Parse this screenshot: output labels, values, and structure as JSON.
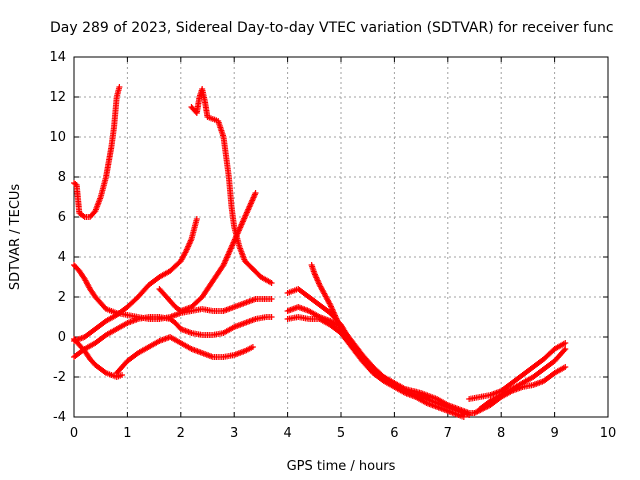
{
  "chart_data": {
    "type": "scatter",
    "title": "Day 289 of 2023, Sidereal Day-to-day VTEC variation (SDTVAR) for receiver func",
    "xlabel": "GPS time / hours",
    "ylabel": "SDTVAR / TECUs",
    "xlim": [
      0,
      10
    ],
    "ylim": [
      -4,
      14
    ],
    "xticks": [
      0,
      1,
      2,
      3,
      4,
      5,
      6,
      7,
      8,
      9,
      10
    ],
    "yticks": [
      -4,
      -2,
      0,
      2,
      4,
      6,
      8,
      10,
      12,
      14
    ],
    "grid": true,
    "marker": "+",
    "color": "#ff0000",
    "series": [
      {
        "name": "trace-1",
        "points": [
          [
            0.0,
            7.7
          ],
          [
            0.05,
            7.6
          ],
          [
            0.1,
            6.2
          ],
          [
            0.2,
            6.0
          ],
          [
            0.3,
            6.0
          ],
          [
            0.4,
            6.3
          ],
          [
            0.5,
            7.0
          ],
          [
            0.6,
            8.0
          ],
          [
            0.7,
            9.5
          ],
          [
            0.75,
            10.5
          ],
          [
            0.8,
            12.0
          ],
          [
            0.85,
            12.5
          ]
        ]
      },
      {
        "name": "trace-2",
        "points": [
          [
            2.2,
            11.5
          ],
          [
            2.3,
            11.2
          ],
          [
            2.35,
            12.0
          ],
          [
            2.4,
            12.4
          ],
          [
            2.45,
            11.8
          ],
          [
            2.5,
            11.0
          ],
          [
            2.6,
            10.9
          ],
          [
            2.7,
            10.8
          ],
          [
            2.8,
            10.0
          ],
          [
            2.85,
            9.0
          ],
          [
            2.9,
            8.0
          ],
          [
            2.95,
            6.5
          ],
          [
            3.0,
            5.5
          ],
          [
            3.1,
            4.5
          ],
          [
            3.2,
            3.8
          ],
          [
            3.35,
            3.4
          ],
          [
            3.5,
            3.0
          ],
          [
            3.7,
            2.7
          ]
        ]
      },
      {
        "name": "trace-3",
        "points": [
          [
            0.0,
            3.6
          ],
          [
            0.1,
            3.3
          ],
          [
            0.2,
            2.9
          ],
          [
            0.3,
            2.4
          ],
          [
            0.4,
            2.0
          ],
          [
            0.5,
            1.7
          ],
          [
            0.6,
            1.4
          ],
          [
            0.7,
            1.3
          ],
          [
            0.8,
            1.2
          ],
          [
            1.0,
            1.1
          ],
          [
            1.2,
            1.0
          ],
          [
            1.4,
            0.9
          ],
          [
            1.6,
            0.9
          ],
          [
            1.8,
            1.0
          ],
          [
            2.0,
            1.2
          ],
          [
            2.2,
            1.3
          ],
          [
            2.4,
            1.4
          ],
          [
            2.6,
            1.3
          ],
          [
            2.8,
            1.3
          ],
          [
            3.0,
            1.5
          ],
          [
            3.2,
            1.7
          ],
          [
            3.4,
            1.9
          ],
          [
            3.6,
            1.9
          ],
          [
            3.7,
            1.9
          ]
        ]
      },
      {
        "name": "trace-4",
        "points": [
          [
            0.0,
            -0.1
          ],
          [
            0.1,
            -0.4
          ],
          [
            0.2,
            -0.7
          ],
          [
            0.3,
            -1.1
          ],
          [
            0.4,
            -1.4
          ],
          [
            0.5,
            -1.6
          ],
          [
            0.6,
            -1.8
          ],
          [
            0.7,
            -1.9
          ],
          [
            0.8,
            -2.0
          ],
          [
            0.9,
            -1.9
          ]
        ]
      },
      {
        "name": "trace-5",
        "points": [
          [
            0.0,
            -1.0
          ],
          [
            0.2,
            -0.6
          ],
          [
            0.4,
            -0.3
          ],
          [
            0.6,
            0.1
          ],
          [
            0.8,
            0.4
          ],
          [
            1.0,
            0.7
          ],
          [
            1.2,
            0.9
          ],
          [
            1.4,
            1.0
          ],
          [
            1.6,
            1.0
          ],
          [
            1.8,
            0.9
          ],
          [
            1.9,
            0.7
          ],
          [
            2.0,
            0.4
          ],
          [
            2.2,
            0.2
          ],
          [
            2.4,
            0.1
          ],
          [
            2.6,
            0.1
          ],
          [
            2.8,
            0.2
          ],
          [
            3.0,
            0.5
          ],
          [
            3.2,
            0.7
          ],
          [
            3.4,
            0.9
          ],
          [
            3.6,
            1.0
          ],
          [
            3.7,
            1.0
          ]
        ]
      },
      {
        "name": "trace-6",
        "points": [
          [
            0.0,
            -0.2
          ],
          [
            0.2,
            0.0
          ],
          [
            0.4,
            0.4
          ],
          [
            0.6,
            0.8
          ],
          [
            0.8,
            1.1
          ],
          [
            1.0,
            1.5
          ],
          [
            1.2,
            2.0
          ],
          [
            1.4,
            2.6
          ],
          [
            1.6,
            3.0
          ],
          [
            1.8,
            3.3
          ],
          [
            2.0,
            3.8
          ],
          [
            2.1,
            4.3
          ],
          [
            2.2,
            4.9
          ],
          [
            2.3,
            5.9
          ]
        ]
      },
      {
        "name": "trace-7",
        "points": [
          [
            1.6,
            2.4
          ],
          [
            1.8,
            1.8
          ],
          [
            1.9,
            1.5
          ],
          [
            2.0,
            1.3
          ],
          [
            2.2,
            1.5
          ],
          [
            2.4,
            2.0
          ],
          [
            2.6,
            2.8
          ],
          [
            2.8,
            3.6
          ],
          [
            3.0,
            4.8
          ],
          [
            3.2,
            6.0
          ],
          [
            3.4,
            7.2
          ]
        ]
      },
      {
        "name": "trace-8",
        "points": [
          [
            0.8,
            -1.8
          ],
          [
            1.0,
            -1.2
          ],
          [
            1.2,
            -0.8
          ],
          [
            1.4,
            -0.5
          ],
          [
            1.6,
            -0.2
          ],
          [
            1.8,
            0.0
          ],
          [
            2.0,
            -0.3
          ],
          [
            2.2,
            -0.6
          ],
          [
            2.4,
            -0.8
          ],
          [
            2.6,
            -1.0
          ],
          [
            2.8,
            -1.0
          ],
          [
            3.0,
            -0.9
          ],
          [
            3.2,
            -0.7
          ],
          [
            3.35,
            -0.5
          ]
        ]
      },
      {
        "name": "trace-9",
        "points": [
          [
            4.0,
            2.2
          ],
          [
            4.1,
            2.3
          ],
          [
            4.2,
            2.4
          ],
          [
            4.3,
            2.2
          ],
          [
            4.4,
            2.0
          ],
          [
            4.6,
            1.6
          ],
          [
            4.8,
            1.2
          ],
          [
            5.0,
            0.6
          ],
          [
            5.2,
            -0.3
          ],
          [
            5.4,
            -1.0
          ],
          [
            5.6,
            -1.6
          ],
          [
            5.8,
            -2.0
          ],
          [
            6.0,
            -2.3
          ],
          [
            6.2,
            -2.6
          ],
          [
            6.5,
            -2.8
          ],
          [
            6.8,
            -3.1
          ],
          [
            7.0,
            -3.4
          ],
          [
            7.2,
            -3.6
          ],
          [
            7.4,
            -3.8
          ],
          [
            7.5,
            -3.8
          ]
        ]
      },
      {
        "name": "trace-10",
        "points": [
          [
            4.0,
            1.3
          ],
          [
            4.2,
            1.5
          ],
          [
            4.4,
            1.3
          ],
          [
            4.6,
            1.0
          ],
          [
            4.8,
            0.8
          ],
          [
            5.0,
            0.5
          ],
          [
            5.2,
            -0.2
          ],
          [
            5.4,
            -0.9
          ],
          [
            5.6,
            -1.5
          ],
          [
            5.8,
            -2.0
          ],
          [
            6.0,
            -2.4
          ],
          [
            6.2,
            -2.7
          ],
          [
            6.4,
            -2.9
          ],
          [
            6.6,
            -3.1
          ],
          [
            6.8,
            -3.3
          ],
          [
            7.0,
            -3.5
          ],
          [
            7.2,
            -3.7
          ],
          [
            7.4,
            -3.9
          ]
        ]
      },
      {
        "name": "trace-11",
        "points": [
          [
            4.0,
            0.9
          ],
          [
            4.2,
            1.0
          ],
          [
            4.4,
            0.9
          ],
          [
            4.6,
            0.9
          ],
          [
            4.8,
            0.6
          ],
          [
            5.0,
            0.2
          ],
          [
            5.2,
            -0.5
          ],
          [
            5.4,
            -1.2
          ],
          [
            5.6,
            -1.8
          ],
          [
            5.8,
            -2.2
          ],
          [
            6.0,
            -2.5
          ],
          [
            6.2,
            -2.8
          ],
          [
            6.4,
            -3.0
          ],
          [
            6.6,
            -3.3
          ],
          [
            6.8,
            -3.5
          ],
          [
            7.0,
            -3.7
          ],
          [
            7.2,
            -3.9
          ],
          [
            7.3,
            -4.0
          ]
        ]
      },
      {
        "name": "trace-12",
        "points": [
          [
            4.45,
            3.6
          ],
          [
            4.5,
            3.2
          ],
          [
            4.6,
            2.6
          ],
          [
            4.7,
            2.1
          ],
          [
            4.8,
            1.6
          ],
          [
            4.9,
            1.0
          ],
          [
            5.0,
            0.4
          ],
          [
            5.1,
            -0.1
          ]
        ]
      },
      {
        "name": "trace-13",
        "points": [
          [
            7.4,
            -3.1
          ],
          [
            7.6,
            -3.0
          ],
          [
            7.8,
            -2.9
          ],
          [
            8.0,
            -2.7
          ],
          [
            8.2,
            -2.3
          ],
          [
            8.4,
            -1.9
          ],
          [
            8.6,
            -1.5
          ],
          [
            8.8,
            -1.1
          ],
          [
            9.0,
            -0.6
          ],
          [
            9.2,
            -0.3
          ]
        ]
      },
      {
        "name": "trace-14",
        "points": [
          [
            7.6,
            -3.6
          ],
          [
            7.8,
            -3.2
          ],
          [
            8.0,
            -2.9
          ],
          [
            8.2,
            -2.6
          ],
          [
            8.4,
            -2.3
          ],
          [
            8.6,
            -2.0
          ],
          [
            8.8,
            -1.6
          ],
          [
            9.0,
            -1.2
          ],
          [
            9.2,
            -0.6
          ]
        ]
      },
      {
        "name": "trace-15",
        "points": [
          [
            7.5,
            -3.8
          ],
          [
            7.8,
            -3.4
          ],
          [
            8.0,
            -3.0
          ],
          [
            8.2,
            -2.7
          ],
          [
            8.4,
            -2.5
          ],
          [
            8.6,
            -2.4
          ],
          [
            8.8,
            -2.2
          ],
          [
            9.0,
            -1.8
          ],
          [
            9.2,
            -1.5
          ]
        ]
      }
    ]
  }
}
